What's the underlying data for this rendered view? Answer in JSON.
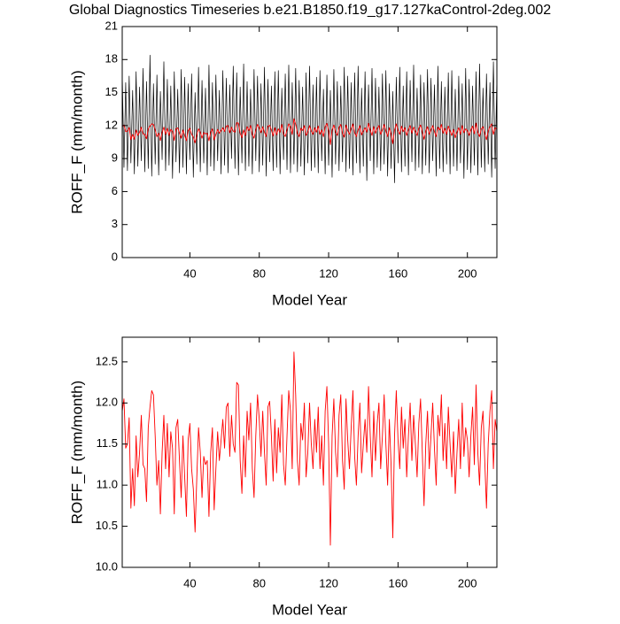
{
  "chart_data": [
    {
      "type": "line",
      "title": "Global Diagnostics Timeseries b.e21.B1850.f19_g17.127kaControl-2deg.002",
      "x_label": "Model Year",
      "y_label": "ROFF_F (mm/month)",
      "xlim": [
        1,
        217
      ],
      "xticks": [
        40,
        80,
        120,
        160,
        200
      ],
      "ylim": [
        0,
        21
      ],
      "yticks": [
        0,
        3,
        6,
        9,
        12,
        15,
        18,
        21
      ],
      "x": [
        1,
        2,
        3,
        4,
        5,
        6,
        7,
        8,
        9,
        10,
        11,
        12,
        13,
        14,
        15,
        16,
        17,
        18,
        19,
        20,
        21,
        22,
        23,
        24,
        25,
        26,
        27,
        28,
        29,
        30,
        31,
        32,
        33,
        34,
        35,
        36,
        37,
        38,
        39,
        40,
        41,
        42,
        43,
        44,
        45,
        46,
        47,
        48,
        49,
        50,
        51,
        52,
        53,
        54,
        55,
        56,
        57,
        58,
        59,
        60,
        61,
        62,
        63,
        64,
        65,
        66,
        67,
        68,
        69,
        70,
        71,
        72,
        73,
        74,
        75,
        76,
        77,
        78,
        79,
        80,
        81,
        82,
        83,
        84,
        85,
        86,
        87,
        88,
        89,
        90,
        91,
        92,
        93,
        94,
        95,
        96,
        97,
        98,
        99,
        100,
        101,
        102,
        103,
        104,
        105,
        106,
        107,
        108,
        109,
        110,
        111,
        112,
        113,
        114,
        115,
        116,
        117,
        118,
        119,
        120,
        121,
        122,
        123,
        124,
        125,
        126,
        127,
        128,
        129,
        130,
        131,
        132,
        133,
        134,
        135,
        136,
        137,
        138,
        139,
        140,
        141,
        142,
        143,
        144,
        145,
        146,
        147,
        148,
        149,
        150,
        151,
        152,
        153,
        154,
        155,
        156,
        157,
        158,
        159,
        160,
        161,
        162,
        163,
        164,
        165,
        166,
        167,
        168,
        169,
        170,
        171,
        172,
        173,
        174,
        175,
        176,
        177,
        178,
        179,
        180,
        181,
        182,
        183,
        184,
        185,
        186,
        187,
        188,
        189,
        190,
        191,
        192,
        193,
        194,
        195,
        196,
        197,
        198,
        199,
        200,
        201,
        202,
        203,
        204,
        205,
        206,
        207,
        208,
        209,
        210,
        211,
        212,
        213,
        214,
        215,
        216,
        217
      ],
      "series": [
        {
          "color": "#000000",
          "values": [
            16.8,
            8.2,
            15.9,
            7.9,
            16.5,
            8.6,
            15.2,
            7.6,
            16.9,
            8.3,
            15.5,
            8.8,
            17.2,
            7.8,
            16.0,
            8.1,
            18.4,
            7.4,
            15.8,
            8.5,
            16.6,
            7.5,
            15.1,
            8.9,
            17.8,
            7.9,
            16.2,
            8.4,
            15.6,
            7.2,
            16.9,
            8.7,
            15.3,
            7.7,
            17.1,
            8.2,
            16.4,
            7.6,
            15.8,
            8.9,
            16.7,
            7.3,
            15.0,
            8.5,
            17.3,
            7.8,
            16.1,
            8.6,
            15.4,
            7.5,
            17.5,
            8.3,
            15.9,
            7.9,
            16.6,
            8.8,
            15.2,
            7.6,
            17.0,
            8.4,
            16.3,
            7.7,
            15.7,
            9.0,
            17.4,
            8.1,
            16.8,
            7.5,
            15.5,
            8.6,
            17.6,
            7.9,
            16.0,
            8.3,
            15.3,
            7.6,
            17.1,
            8.8,
            16.5,
            7.8,
            15.8,
            8.4,
            17.3,
            7.4,
            16.2,
            8.7,
            15.6,
            7.9,
            16.9,
            8.2,
            17.0,
            7.6,
            15.4,
            8.9,
            16.7,
            8.0,
            17.5,
            7.7,
            15.9,
            8.5,
            17.2,
            7.8,
            16.1,
            8.3,
            15.5,
            7.5,
            16.8,
            8.6,
            17.4,
            7.9,
            15.7,
            8.2,
            16.4,
            7.7,
            17.0,
            8.8,
            15.3,
            7.6,
            16.6,
            8.4,
            15.2,
            7.3,
            17.1,
            8.5,
            16.0,
            7.9,
            15.6,
            8.7,
            17.3,
            7.8,
            16.5,
            8.1,
            15.9,
            7.5,
            16.8,
            8.6,
            17.4,
            7.7,
            15.4,
            8.3,
            16.9,
            7.0,
            15.7,
            8.8,
            17.2,
            7.6,
            16.3,
            8.2,
            15.5,
            7.9,
            16.7,
            8.5,
            17.0,
            7.4,
            15.8,
            8.1,
            15.1,
            6.8,
            16.4,
            8.6,
            17.3,
            7.8,
            15.6,
            8.3,
            16.9,
            7.5,
            16.1,
            8.7,
            17.5,
            7.9,
            15.4,
            8.2,
            16.6,
            7.6,
            15.9,
            8.4,
            17.1,
            7.7,
            16.3,
            8.8,
            15.7,
            7.4,
            17.4,
            8.1,
            16.0,
            7.8,
            15.5,
            8.5,
            16.8,
            7.6,
            17.0,
            8.3,
            15.3,
            7.9,
            16.5,
            8.6,
            15.8,
            7.2,
            17.2,
            8.0,
            16.2,
            7.7,
            15.6,
            8.4,
            16.9,
            7.5,
            17.6,
            8.2,
            15.4,
            7.8,
            16.7,
            8.5,
            15.9,
            7.3,
            17.8,
            8.1,
            16.4
          ]
        },
        {
          "color": "#ff0000",
          "values": [
            11.9,
            12.05,
            11.45,
            11.5,
            11.82,
            10.72,
            11.2,
            10.75,
            11.6,
            11.1,
            11.4,
            11.85,
            11.25,
            11.2,
            10.8,
            11.7,
            11.95,
            12.15,
            12.1,
            11.6,
            11.0,
            11.3,
            10.65,
            11.4,
            11.85,
            11.2,
            11.75,
            11.1,
            11.65,
            11.45,
            10.65,
            11.7,
            11.8,
            11.3,
            10.85,
            11.6,
            11.1,
            10.62,
            11.55,
            11.75,
            11.2,
            10.95,
            10.43,
            11.1,
            11.7,
            11.4,
            10.85,
            11.35,
            11.25,
            11.3,
            10.62,
            11.4,
            11.7,
            10.7,
            11.2,
            11.65,
            11.3,
            11.55,
            11.8,
            11.45,
            11.95,
            12.0,
            11.35,
            11.85,
            11.5,
            11.4,
            12.25,
            12.22,
            11.3,
            10.9,
            11.6,
            11.1,
            11.9,
            11.55,
            12.0,
            11.2,
            10.85,
            11.6,
            12.1,
            11.8,
            11.35,
            11.9,
            11.4,
            11.0,
            11.95,
            12.02,
            11.6,
            11.05,
            11.8,
            11.15,
            11.7,
            11.4,
            12.1,
            11.25,
            11.0,
            11.6,
            12.15,
            11.9,
            11.2,
            12.62,
            12.1,
            11.3,
            11.0,
            11.75,
            11.55,
            12.0,
            11.1,
            11.4,
            12.0,
            11.5,
            11.2,
            11.8,
            11.4,
            11.95,
            11.2,
            11.6,
            11.0,
            11.9,
            12.2,
            11.5,
            10.27,
            11.6,
            12.05,
            11.4,
            11.1,
            11.85,
            12.1,
            11.3,
            10.95,
            12.05,
            11.55,
            11.2,
            11.7,
            12.15,
            11.35,
            11.0,
            11.6,
            12.0,
            11.15,
            11.5,
            11.8,
            11.4,
            12.2,
            11.6,
            11.1,
            11.9,
            11.3,
            11.75,
            12.0,
            11.2,
            11.6,
            12.1,
            11.5,
            11.0,
            11.8,
            11.25,
            10.36,
            11.6,
            12.15,
            11.55,
            11.2,
            11.95,
            11.45,
            11.8,
            11.1,
            11.6,
            12.0,
            11.3,
            11.85,
            11.5,
            11.1,
            11.75,
            12.05,
            11.4,
            10.75,
            11.5,
            11.9,
            11.2,
            11.6,
            12.0,
            11.45,
            11.0,
            11.85,
            11.6,
            12.1,
            11.3,
            11.75,
            11.2,
            11.95,
            11.5,
            11.1,
            11.65,
            10.9,
            11.4,
            11.8,
            11.2,
            12.0,
            11.35,
            11.7,
            11.55,
            11.1,
            11.6,
            11.95,
            11.25,
            12.22,
            11.4,
            11.0,
            11.7,
            11.9,
            11.3,
            10.72,
            11.5,
            11.9,
            12.15,
            11.2,
            11.8,
            11.65
          ]
        }
      ]
    },
    {
      "type": "line",
      "x_label": "Model Year",
      "y_label": "ROFF_F (mm/month)",
      "xlim": [
        1,
        217
      ],
      "xticks": [
        40,
        80,
        120,
        160,
        200
      ],
      "ylim": [
        10,
        12.8
      ],
      "yticks": [
        {
          "value": 10,
          "label": "10.0"
        },
        10.5,
        {
          "value": 11,
          "label": "11.0"
        },
        11.5,
        {
          "value": 12,
          "label": "12.0"
        },
        12.5
      ],
      "x": [
        1,
        2,
        3,
        4,
        5,
        6,
        7,
        8,
        9,
        10,
        11,
        12,
        13,
        14,
        15,
        16,
        17,
        18,
        19,
        20,
        21,
        22,
        23,
        24,
        25,
        26,
        27,
        28,
        29,
        30,
        31,
        32,
        33,
        34,
        35,
        36,
        37,
        38,
        39,
        40,
        41,
        42,
        43,
        44,
        45,
        46,
        47,
        48,
        49,
        50,
        51,
        52,
        53,
        54,
        55,
        56,
        57,
        58,
        59,
        60,
        61,
        62,
        63,
        64,
        65,
        66,
        67,
        68,
        69,
        70,
        71,
        72,
        73,
        74,
        75,
        76,
        77,
        78,
        79,
        80,
        81,
        82,
        83,
        84,
        85,
        86,
        87,
        88,
        89,
        90,
        91,
        92,
        93,
        94,
        95,
        96,
        97,
        98,
        99,
        100,
        101,
        102,
        103,
        104,
        105,
        106,
        107,
        108,
        109,
        110,
        111,
        112,
        113,
        114,
        115,
        116,
        117,
        118,
        119,
        120,
        121,
        122,
        123,
        124,
        125,
        126,
        127,
        128,
        129,
        130,
        131,
        132,
        133,
        134,
        135,
        136,
        137,
        138,
        139,
        140,
        141,
        142,
        143,
        144,
        145,
        146,
        147,
        148,
        149,
        150,
        151,
        152,
        153,
        154,
        155,
        156,
        157,
        158,
        159,
        160,
        161,
        162,
        163,
        164,
        165,
        166,
        167,
        168,
        169,
        170,
        171,
        172,
        173,
        174,
        175,
        176,
        177,
        178,
        179,
        180,
        181,
        182,
        183,
        184,
        185,
        186,
        187,
        188,
        189,
        190,
        191,
        192,
        193,
        194,
        195,
        196,
        197,
        198,
        199,
        200,
        201,
        202,
        203,
        204,
        205,
        206,
        207,
        208,
        209,
        210,
        211,
        212,
        213,
        214,
        215,
        216,
        217
      ],
      "series": [
        {
          "color": "#ff0000",
          "values": [
            11.9,
            12.05,
            11.45,
            11.5,
            11.82,
            10.72,
            11.2,
            10.75,
            11.6,
            11.1,
            11.4,
            11.85,
            11.25,
            11.2,
            10.8,
            11.7,
            11.95,
            12.15,
            12.1,
            11.6,
            11.0,
            11.3,
            10.65,
            11.4,
            11.85,
            11.2,
            11.75,
            11.1,
            11.65,
            11.45,
            10.65,
            11.7,
            11.8,
            11.3,
            10.85,
            11.6,
            11.1,
            10.62,
            11.55,
            11.75,
            11.2,
            10.95,
            10.43,
            11.1,
            11.7,
            11.4,
            10.85,
            11.35,
            11.25,
            11.3,
            10.62,
            11.4,
            11.7,
            10.7,
            11.2,
            11.65,
            11.3,
            11.55,
            11.8,
            11.45,
            11.95,
            12.0,
            11.35,
            11.85,
            11.5,
            11.4,
            12.25,
            12.22,
            11.3,
            10.9,
            11.6,
            11.1,
            11.9,
            11.55,
            12.0,
            11.2,
            10.85,
            11.6,
            12.1,
            11.8,
            11.35,
            11.9,
            11.4,
            11.0,
            11.95,
            12.02,
            11.6,
            11.05,
            11.8,
            11.15,
            11.7,
            11.4,
            12.1,
            11.25,
            11.0,
            11.6,
            12.15,
            11.9,
            11.2,
            12.62,
            12.1,
            11.3,
            11.0,
            11.75,
            11.55,
            12.0,
            11.1,
            11.4,
            12.0,
            11.5,
            11.2,
            11.8,
            11.4,
            11.95,
            11.2,
            11.6,
            11.0,
            11.9,
            12.2,
            11.5,
            10.27,
            11.6,
            12.05,
            11.4,
            11.1,
            11.85,
            12.1,
            11.3,
            10.95,
            12.05,
            11.55,
            11.2,
            11.7,
            12.15,
            11.35,
            11.0,
            11.6,
            12.0,
            11.15,
            11.5,
            11.8,
            11.4,
            12.2,
            11.6,
            11.1,
            11.9,
            11.3,
            11.75,
            12.0,
            11.2,
            11.6,
            12.1,
            11.5,
            11.0,
            11.8,
            11.25,
            10.36,
            11.6,
            12.15,
            11.55,
            11.2,
            11.95,
            11.45,
            11.8,
            11.1,
            11.6,
            12.0,
            11.3,
            11.85,
            11.5,
            11.1,
            11.75,
            12.05,
            11.4,
            10.75,
            11.5,
            11.9,
            11.2,
            11.6,
            12.0,
            11.45,
            11.0,
            11.85,
            11.6,
            12.1,
            11.3,
            11.75,
            11.2,
            11.95,
            11.5,
            11.1,
            11.65,
            10.9,
            11.4,
            11.8,
            11.2,
            12.0,
            11.35,
            11.7,
            11.55,
            11.1,
            11.6,
            11.95,
            11.25,
            12.22,
            11.4,
            11.0,
            11.7,
            11.9,
            11.3,
            10.72,
            11.5,
            11.9,
            12.15,
            11.2,
            11.8,
            11.65
          ]
        }
      ]
    }
  ]
}
